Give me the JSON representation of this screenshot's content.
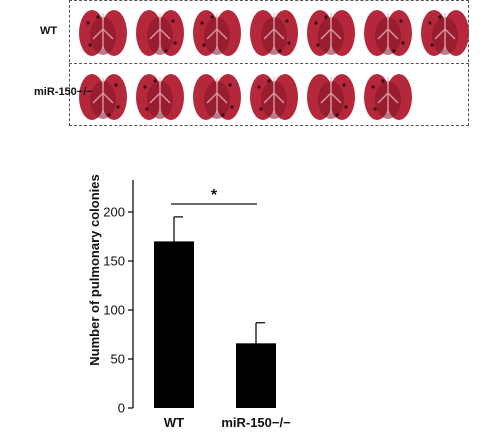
{
  "photos": {
    "rows": [
      {
        "label": "WT",
        "count": 7
      },
      {
        "label": "miR-150−/−",
        "count": 6
      }
    ],
    "colors": {
      "lobe": "#b5283c",
      "lobe_dark": "#7e1424",
      "highlight": "#e8b8bf",
      "spot": "#3a0810"
    }
  },
  "chart_data": {
    "type": "bar",
    "categories": [
      "WT",
      "miR-150−/−"
    ],
    "values": [
      170,
      66
    ],
    "errors": [
      25,
      21
    ],
    "ylabel": "Number of pulmonary colonies",
    "ylim": [
      0,
      200
    ],
    "yticks": [
      0,
      50,
      100,
      150,
      200
    ],
    "significance": "*",
    "bar_color": "#000000"
  }
}
